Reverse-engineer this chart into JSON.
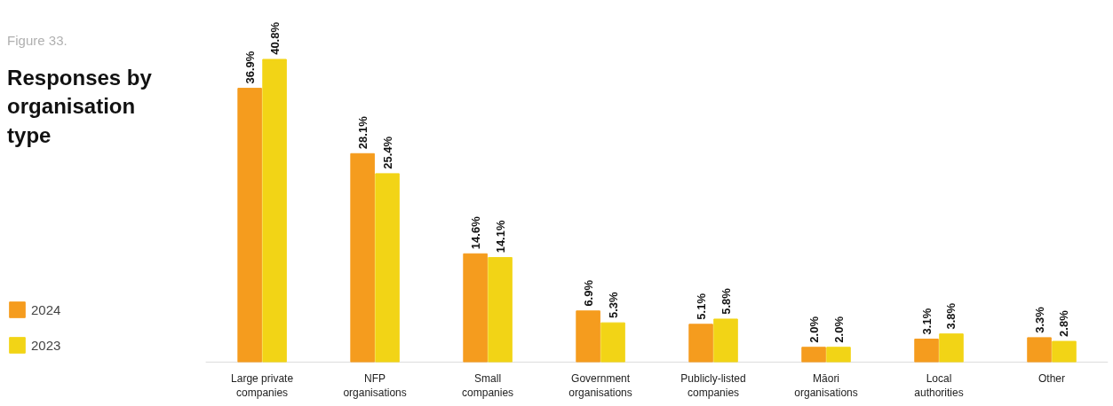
{
  "chart_data": {
    "type": "bar",
    "title": "Responses by organisation type",
    "subtitle": "Figure 33.",
    "categories": [
      "Large private companies",
      "NFP organisations",
      "Small companies",
      "Government organisations",
      "Publicly-listed companies",
      "Māori organisations",
      "Local authorities",
      "Other"
    ],
    "series": [
      {
        "name": "2024",
        "color": "#f59c1e",
        "values": [
          36.9,
          28.1,
          14.6,
          6.9,
          5.1,
          2.0,
          3.1,
          3.3
        ],
        "value_labels": [
          "36.9%",
          "28.1%",
          "14.6%",
          "6.9%",
          "5.1%",
          "2.0%",
          "3.1%",
          "3.3%"
        ]
      },
      {
        "name": "2023",
        "color": "#f2d416",
        "values": [
          40.8,
          25.4,
          14.1,
          5.3,
          5.8,
          2.0,
          3.8,
          2.8
        ],
        "value_labels": [
          "40.8%",
          "25.4%",
          "14.1%",
          "5.3%",
          "5.8%",
          "2.0%",
          "3.8%",
          "2.8%"
        ]
      }
    ],
    "legend": "bottom left",
    "grid": false
  }
}
